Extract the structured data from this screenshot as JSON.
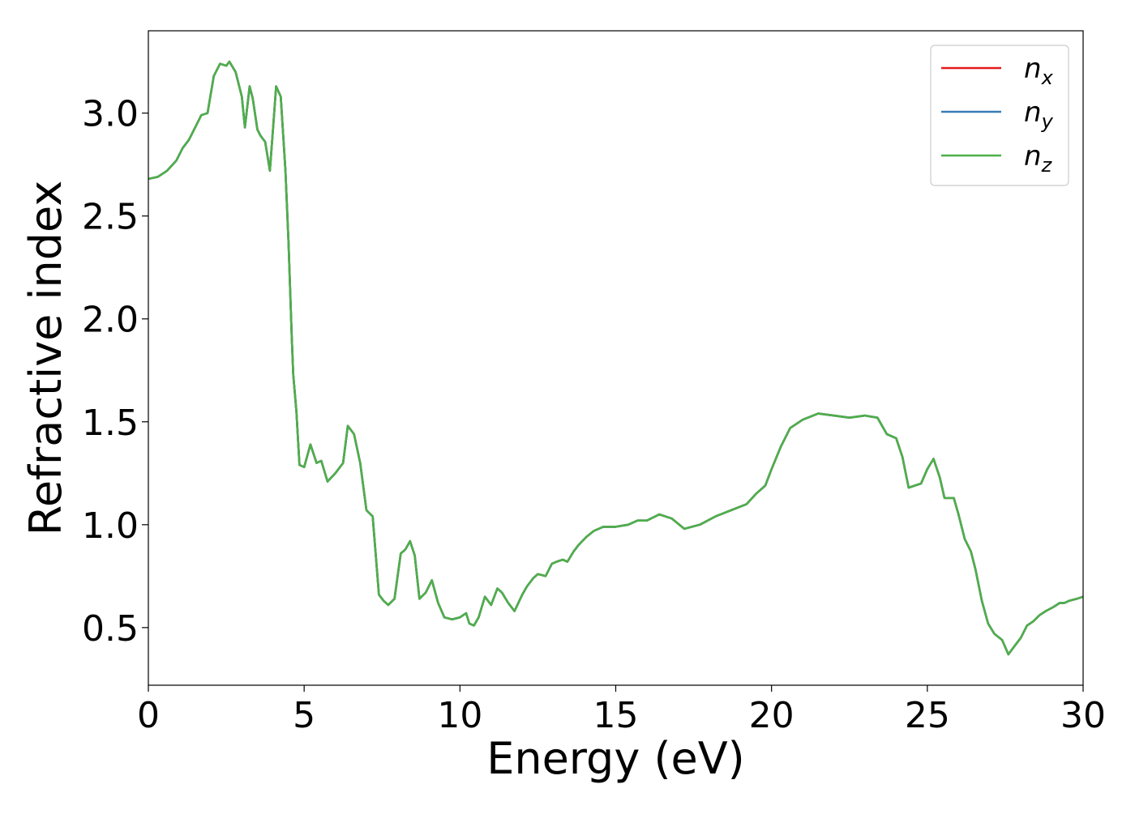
{
  "chart_data": {
    "type": "line",
    "title": "",
    "xlabel": "Energy (eV)",
    "ylabel": "Refractive index",
    "xlim": [
      0,
      30
    ],
    "ylim": [
      0.22,
      3.4
    ],
    "xticks": [
      0,
      5,
      10,
      15,
      20,
      25,
      30
    ],
    "yticks": [
      0.5,
      1.0,
      1.5,
      2.0,
      2.5,
      3.0
    ],
    "xtick_labels": [
      "0",
      "5",
      "10",
      "15",
      "20",
      "25",
      "30"
    ],
    "ytick_labels": [
      "0.5",
      "1.0",
      "1.5",
      "2.0",
      "2.5",
      "3.0"
    ],
    "grid": false,
    "legend_position": "top-right",
    "x": [
      0,
      0.3,
      0.6,
      0.9,
      1.1,
      1.3,
      1.5,
      1.7,
      1.9,
      2.1,
      2.3,
      2.5,
      2.6,
      2.8,
      3.0,
      3.1,
      3.25,
      3.35,
      3.5,
      3.6,
      3.75,
      3.9,
      4.0,
      4.1,
      4.25,
      4.4,
      4.5,
      4.6,
      4.65,
      4.75,
      4.85,
      5.0,
      5.2,
      5.4,
      5.55,
      5.75,
      6.0,
      6.25,
      6.4,
      6.6,
      6.8,
      7.0,
      7.2,
      7.4,
      7.55,
      7.7,
      7.9,
      8.1,
      8.25,
      8.4,
      8.55,
      8.7,
      8.9,
      9.1,
      9.3,
      9.5,
      9.75,
      10.0,
      10.2,
      10.3,
      10.45,
      10.6,
      10.8,
      11.0,
      11.2,
      11.35,
      11.55,
      11.75,
      12.0,
      12.15,
      12.35,
      12.5,
      12.75,
      12.95,
      13.1,
      13.3,
      13.45,
      13.65,
      13.8,
      14.05,
      14.3,
      14.6,
      15.0,
      15.4,
      15.7,
      16.0,
      16.4,
      16.8,
      17.2,
      17.7,
      18.2,
      18.7,
      19.2,
      19.5,
      19.8,
      20.0,
      20.3,
      20.6,
      21.0,
      21.5,
      22.0,
      22.5,
      23.0,
      23.4,
      23.7,
      24.0,
      24.2,
      24.4,
      24.6,
      24.8,
      25.0,
      25.2,
      25.4,
      25.55,
      25.7,
      25.85,
      26.0,
      26.2,
      26.4,
      26.55,
      26.75,
      26.95,
      27.15,
      27.4,
      27.6,
      27.8,
      28.0,
      28.2,
      28.4,
      28.6,
      28.8,
      29.05,
      29.25,
      29.4,
      29.55,
      29.8,
      30.0
    ],
    "series": [
      {
        "name": "n_x",
        "label_base": "n",
        "label_sub": "x",
        "color": "#e41a1c",
        "y": [
          2.68,
          2.69,
          2.72,
          2.77,
          2.83,
          2.87,
          2.93,
          2.99,
          3.0,
          3.18,
          3.24,
          3.23,
          3.25,
          3.2,
          3.08,
          2.93,
          3.13,
          3.07,
          2.92,
          2.89,
          2.86,
          2.72,
          2.92,
          3.13,
          3.08,
          2.72,
          2.37,
          1.92,
          1.73,
          1.55,
          1.29,
          1.28,
          1.39,
          1.3,
          1.31,
          1.21,
          1.25,
          1.3,
          1.48,
          1.44,
          1.3,
          1.07,
          1.04,
          0.66,
          0.63,
          0.61,
          0.64,
          0.86,
          0.88,
          0.92,
          0.85,
          0.64,
          0.67,
          0.73,
          0.62,
          0.55,
          0.54,
          0.55,
          0.57,
          0.52,
          0.51,
          0.55,
          0.65,
          0.61,
          0.69,
          0.67,
          0.62,
          0.58,
          0.66,
          0.7,
          0.74,
          0.76,
          0.75,
          0.81,
          0.82,
          0.83,
          0.82,
          0.87,
          0.9,
          0.94,
          0.97,
          0.99,
          0.99,
          1.0,
          1.02,
          1.02,
          1.05,
          1.03,
          0.98,
          1.0,
          1.04,
          1.07,
          1.1,
          1.15,
          1.19,
          1.27,
          1.38,
          1.47,
          1.51,
          1.54,
          1.53,
          1.52,
          1.53,
          1.52,
          1.44,
          1.42,
          1.33,
          1.18,
          1.19,
          1.2,
          1.27,
          1.32,
          1.23,
          1.13,
          1.13,
          1.13,
          1.05,
          0.93,
          0.87,
          0.78,
          0.63,
          0.52,
          0.47,
          0.44,
          0.37,
          0.41,
          0.45,
          0.51,
          0.53,
          0.56,
          0.58,
          0.6,
          0.62,
          0.62,
          0.63,
          0.64,
          0.65
        ]
      },
      {
        "name": "n_y",
        "label_base": "n",
        "label_sub": "y",
        "color": "#377eb8",
        "y": [
          2.68,
          2.69,
          2.72,
          2.77,
          2.83,
          2.87,
          2.93,
          2.99,
          3.0,
          3.18,
          3.24,
          3.23,
          3.25,
          3.2,
          3.08,
          2.93,
          3.13,
          3.07,
          2.92,
          2.89,
          2.86,
          2.72,
          2.92,
          3.13,
          3.08,
          2.72,
          2.37,
          1.92,
          1.73,
          1.55,
          1.29,
          1.28,
          1.39,
          1.3,
          1.31,
          1.21,
          1.25,
          1.3,
          1.48,
          1.44,
          1.3,
          1.07,
          1.04,
          0.66,
          0.63,
          0.61,
          0.64,
          0.86,
          0.88,
          0.92,
          0.85,
          0.64,
          0.67,
          0.73,
          0.62,
          0.55,
          0.54,
          0.55,
          0.57,
          0.52,
          0.51,
          0.55,
          0.65,
          0.61,
          0.69,
          0.67,
          0.62,
          0.58,
          0.66,
          0.7,
          0.74,
          0.76,
          0.75,
          0.81,
          0.82,
          0.83,
          0.82,
          0.87,
          0.9,
          0.94,
          0.97,
          0.99,
          0.99,
          1.0,
          1.02,
          1.02,
          1.05,
          1.03,
          0.98,
          1.0,
          1.04,
          1.07,
          1.1,
          1.15,
          1.19,
          1.27,
          1.38,
          1.47,
          1.51,
          1.54,
          1.53,
          1.52,
          1.53,
          1.52,
          1.44,
          1.42,
          1.33,
          1.18,
          1.19,
          1.2,
          1.27,
          1.32,
          1.23,
          1.13,
          1.13,
          1.13,
          1.05,
          0.93,
          0.87,
          0.78,
          0.63,
          0.52,
          0.47,
          0.44,
          0.37,
          0.41,
          0.45,
          0.51,
          0.53,
          0.56,
          0.58,
          0.6,
          0.62,
          0.62,
          0.63,
          0.64,
          0.65
        ]
      },
      {
        "name": "n_z",
        "label_base": "n",
        "label_sub": "z",
        "color": "#4daf4a",
        "y": [
          2.68,
          2.69,
          2.72,
          2.77,
          2.83,
          2.87,
          2.93,
          2.99,
          3.0,
          3.18,
          3.24,
          3.23,
          3.25,
          3.2,
          3.08,
          2.93,
          3.13,
          3.07,
          2.92,
          2.89,
          2.86,
          2.72,
          2.92,
          3.13,
          3.08,
          2.72,
          2.37,
          1.92,
          1.73,
          1.55,
          1.29,
          1.28,
          1.39,
          1.3,
          1.31,
          1.21,
          1.25,
          1.3,
          1.48,
          1.44,
          1.3,
          1.07,
          1.04,
          0.66,
          0.63,
          0.61,
          0.64,
          0.86,
          0.88,
          0.92,
          0.85,
          0.64,
          0.67,
          0.73,
          0.62,
          0.55,
          0.54,
          0.55,
          0.57,
          0.52,
          0.51,
          0.55,
          0.65,
          0.61,
          0.69,
          0.67,
          0.62,
          0.58,
          0.66,
          0.7,
          0.74,
          0.76,
          0.75,
          0.81,
          0.82,
          0.83,
          0.82,
          0.87,
          0.9,
          0.94,
          0.97,
          0.99,
          0.99,
          1.0,
          1.02,
          1.02,
          1.05,
          1.03,
          0.98,
          1.0,
          1.04,
          1.07,
          1.1,
          1.15,
          1.19,
          1.27,
          1.38,
          1.47,
          1.51,
          1.54,
          1.53,
          1.52,
          1.53,
          1.52,
          1.44,
          1.42,
          1.33,
          1.18,
          1.19,
          1.2,
          1.27,
          1.32,
          1.23,
          1.13,
          1.13,
          1.13,
          1.05,
          0.93,
          0.87,
          0.78,
          0.63,
          0.52,
          0.47,
          0.44,
          0.37,
          0.41,
          0.45,
          0.51,
          0.53,
          0.56,
          0.58,
          0.6,
          0.62,
          0.62,
          0.63,
          0.64,
          0.65
        ]
      }
    ]
  }
}
